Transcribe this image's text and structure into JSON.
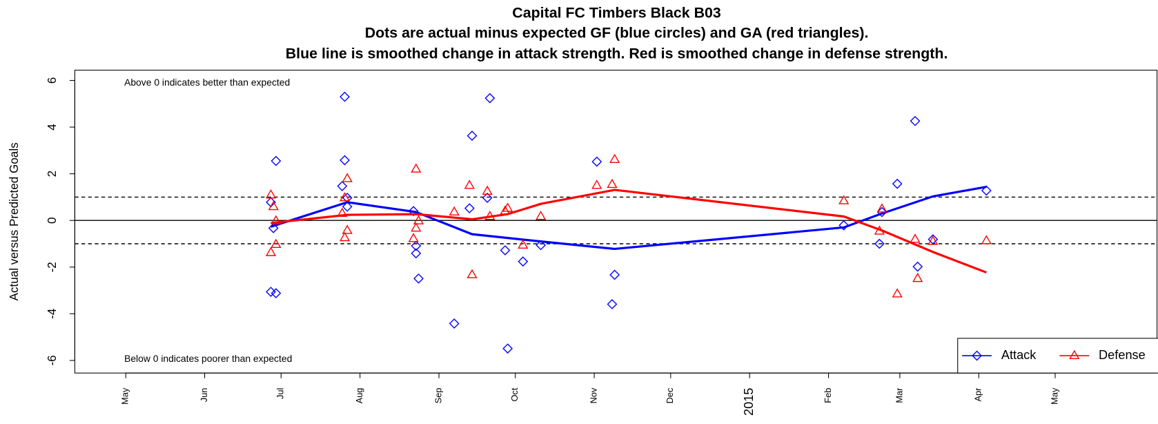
{
  "chart_data": {
    "type": "scatter",
    "title": "Capital FC Timbers Black B03",
    "subtitle": [
      "Dots are actual minus expected GF (blue circles) and GA (red triangles).",
      "Blue line is smoothed change in attack strength. Red is smoothed change in defense strength."
    ],
    "y_label": "Actual versus Predicted Goals",
    "annotations": {
      "top": "Above 0 indicates better than expected",
      "bottom": "Below 0 indicates poorer than expected"
    },
    "xlim": [
      "2014-04-11",
      "2015-06-10"
    ],
    "xticks": [
      {
        "value": "2014-05-01",
        "label": "May"
      },
      {
        "value": "2014-06-01",
        "label": "Jun"
      },
      {
        "value": "2014-07-01",
        "label": "Jul"
      },
      {
        "value": "2014-08-01",
        "label": "Aug"
      },
      {
        "value": "2014-09-01",
        "label": "Sep"
      },
      {
        "value": "2014-10-01",
        "label": "Oct"
      },
      {
        "value": "2014-11-01",
        "label": "Nov"
      },
      {
        "value": "2014-12-01",
        "label": "Dec"
      },
      {
        "value": "2015-01-01",
        "label": "2015"
      },
      {
        "value": "2015-02-01",
        "label": "Feb"
      },
      {
        "value": "2015-03-01",
        "label": "Mar"
      },
      {
        "value": "2015-04-01",
        "label": "Apr"
      },
      {
        "value": "2015-05-01",
        "label": "May"
      }
    ],
    "ylim": [
      -6.54,
      6.44
    ],
    "yticks": [
      -6,
      -4,
      -2,
      0,
      2,
      4,
      6
    ],
    "hlines": [
      {
        "value": 0,
        "style": "solid"
      },
      {
        "value": 1,
        "style": "dashed"
      },
      {
        "value": -1,
        "style": "dashed"
      }
    ],
    "legend": "bottomright",
    "series": [
      {
        "name": "Attack",
        "color": "#0000ff",
        "marker": "diamond",
        "x": [
          "2014-06-27",
          "2014-06-28",
          "2014-06-29",
          "2014-06-27",
          "2014-06-29",
          "2014-07-25",
          "2014-07-26",
          "2014-07-26",
          "2014-07-27",
          "2014-07-27",
          "2014-08-22",
          "2014-08-23",
          "2014-08-23",
          "2014-08-24",
          "2014-09-07",
          "2014-09-13",
          "2014-09-14",
          "2014-09-20",
          "2014-09-21",
          "2014-09-27",
          "2014-09-28",
          "2014-10-04",
          "2014-10-11",
          "2014-11-02",
          "2014-11-08",
          "2014-11-09",
          "2015-02-07",
          "2015-02-21",
          "2015-02-22",
          "2015-02-28",
          "2015-03-07",
          "2015-03-08",
          "2015-03-14",
          "2015-04-04"
        ],
        "values": [
          0.78,
          -0.33,
          2.55,
          -3.06,
          -3.12,
          1.47,
          5.3,
          2.58,
          0.59,
          0.97,
          0.4,
          -1.09,
          -1.41,
          -2.49,
          -4.42,
          0.52,
          3.63,
          0.97,
          5.24,
          -1.28,
          -5.49,
          -1.76,
          -1.06,
          2.52,
          -3.59,
          -2.33,
          -0.21,
          -1.0,
          0.36,
          1.57,
          4.26,
          -1.98,
          -0.81,
          1.28
        ],
        "line": {
          "x": [
            "2014-06-27",
            "2014-07-27",
            "2014-08-23",
            "2014-09-14",
            "2014-10-11",
            "2014-11-09",
            "2015-02-07",
            "2015-02-22",
            "2015-03-14",
            "2015-04-04"
          ],
          "values": [
            -0.27,
            0.78,
            0.36,
            -0.59,
            -0.9,
            -1.22,
            -0.3,
            0.3,
            1.03,
            1.44
          ]
        }
      },
      {
        "name": "Defense",
        "color": "#ff0000",
        "marker": "triangle",
        "x": [
          "2014-06-27",
          "2014-06-28",
          "2014-06-29",
          "2014-06-29",
          "2014-06-27",
          "2014-07-25",
          "2014-07-26",
          "2014-07-27",
          "2014-07-27",
          "2014-07-26",
          "2014-08-22",
          "2014-08-23",
          "2014-08-23",
          "2014-08-24",
          "2014-09-07",
          "2014-09-13",
          "2014-09-14",
          "2014-09-20",
          "2014-09-21",
          "2014-09-27",
          "2014-09-28",
          "2014-10-04",
          "2014-10-11",
          "2014-11-02",
          "2014-11-08",
          "2014-11-09",
          "2015-02-07",
          "2015-02-21",
          "2015-02-22",
          "2015-02-28",
          "2015-03-07",
          "2015-03-08",
          "2015-03-14",
          "2015-04-04"
        ],
        "values": [
          1.09,
          0.59,
          -0.02,
          -1.03,
          -1.38,
          0.3,
          -0.74,
          1.79,
          -0.43,
          0.97,
          -0.78,
          2.2,
          -0.33,
          -0.02,
          0.36,
          1.5,
          -2.33,
          1.25,
          0.17,
          0.4,
          0.52,
          -1.06,
          0.17,
          1.5,
          1.54,
          2.61,
          0.84,
          -0.46,
          0.49,
          -3.15,
          -0.81,
          -2.49,
          -0.9,
          -0.87
        ],
        "line": {
          "x": [
            "2014-06-27",
            "2014-07-27",
            "2014-08-23",
            "2014-09-14",
            "2014-09-28",
            "2014-10-11",
            "2014-11-09",
            "2015-02-07",
            "2015-02-22",
            "2015-03-14",
            "2015-04-04"
          ],
          "values": [
            -0.11,
            0.24,
            0.27,
            0.05,
            0.27,
            0.71,
            1.31,
            0.17,
            -0.43,
            -1.35,
            -2.23
          ]
        }
      }
    ]
  }
}
